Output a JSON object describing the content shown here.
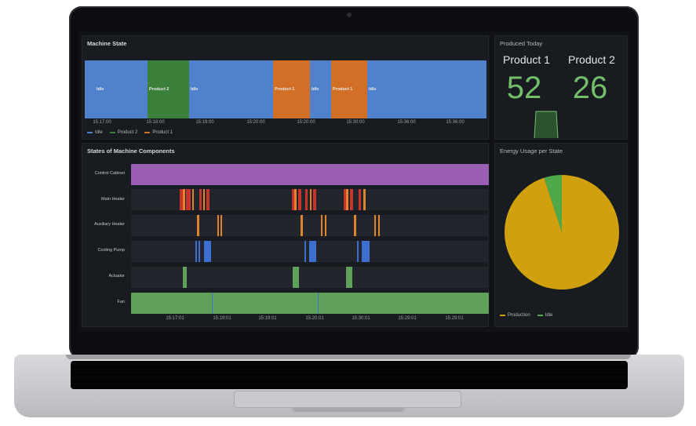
{
  "colors": {
    "idle": "#5081cd",
    "product1": "#d06f25",
    "product2": "#3a7f3a",
    "purple": "#9a5fb4",
    "green": "#5fa05a",
    "red": "#c8342c",
    "orange": "#e0852c",
    "blue": "#3c6fcf",
    "pie_production": "#d1a00e",
    "pie_idle": "#4fa84a",
    "stat_green": "#73bf69"
  },
  "machine_state": {
    "title": "Machine State",
    "segments": [
      {
        "label": "",
        "state": "idle"
      },
      {
        "label": "Idle",
        "state": "idle"
      },
      {
        "label": "Product 2",
        "state": "product2"
      },
      {
        "label": "Idle",
        "state": "idle"
      },
      {
        "label": "Product 1",
        "state": "product1"
      },
      {
        "label": "Idle",
        "state": "idle"
      },
      {
        "label": "Product 1",
        "state": "product1"
      },
      {
        "label": "Idle",
        "state": "idle"
      }
    ],
    "ticks": [
      "15:17:00",
      "15:18:00",
      "15:19:00",
      "15:20:00",
      "15:20:00",
      "15:30:00",
      "15:36:00"
    ],
    "legend": [
      {
        "label": "Idle",
        "state": "idle"
      },
      {
        "label": "Product 2",
        "state": "product2"
      },
      {
        "label": "Product 1",
        "state": "product1"
      }
    ]
  },
  "produced_today": {
    "title": "Produced Today",
    "items": [
      {
        "name": "Product 1",
        "value": "52"
      },
      {
        "name": "Product 2",
        "value": "26"
      }
    ]
  },
  "components": {
    "title": "States of Machine Components",
    "rows": [
      {
        "label": "Control Cabinet"
      },
      {
        "label": "Main Heater"
      },
      {
        "label": "Auxiliary Heater"
      },
      {
        "label": "Cooling Pump"
      },
      {
        "label": "Actuator"
      },
      {
        "label": "Fan"
      }
    ],
    "ticks": [
      "15:17:01",
      "15:19:01",
      "15:19:01",
      "15:20:01",
      "15:30:01",
      "15:29:01",
      "15:29:01"
    ]
  },
  "energy": {
    "title": "Energy Usage per State",
    "legend": [
      {
        "label": "Production",
        "state": "pie_production"
      },
      {
        "label": "Idle",
        "state": "pie_idle"
      }
    ],
    "slices": [
      {
        "label": "Production",
        "value": 95
      },
      {
        "label": "Idle",
        "value": 5
      }
    ]
  }
}
